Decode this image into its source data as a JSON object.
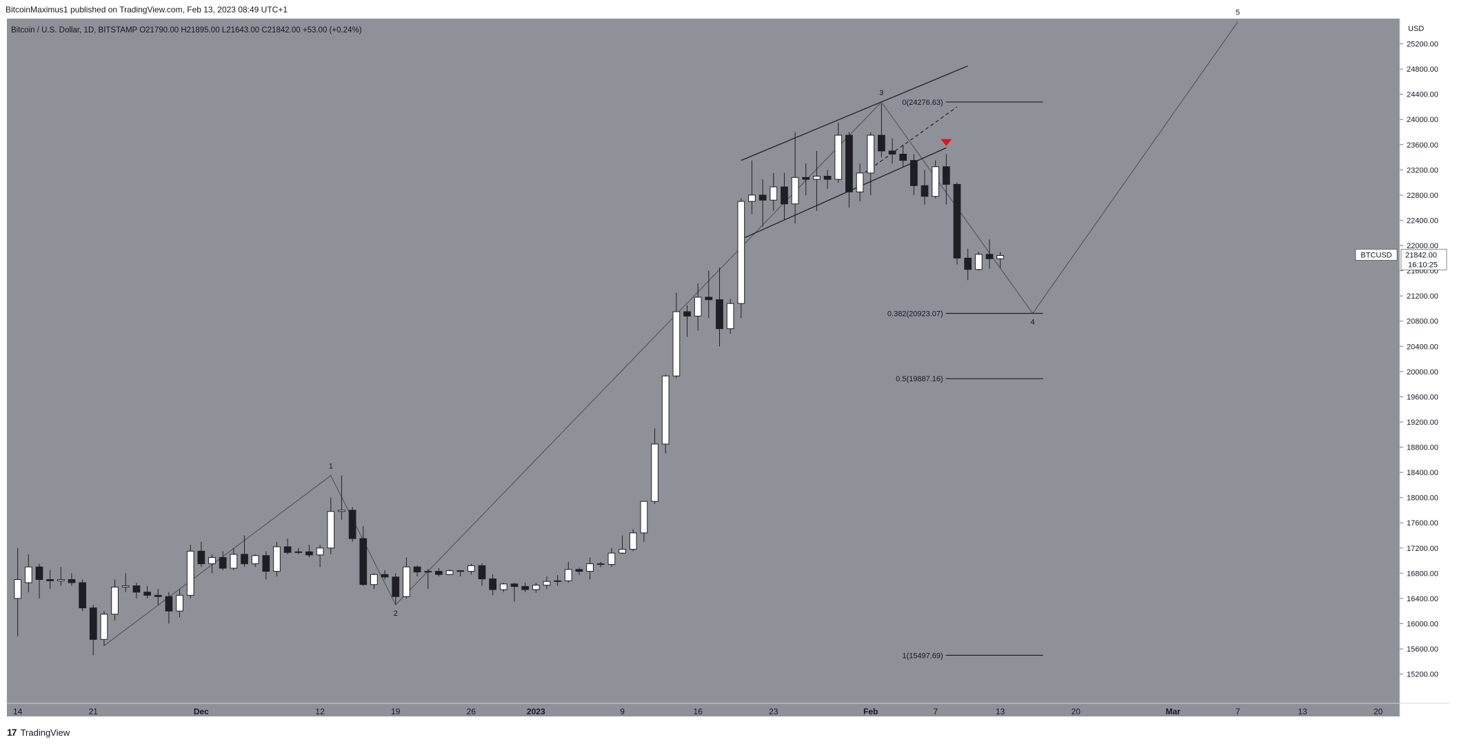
{
  "header": {
    "publisher_line": "BitcoinMaximus1 published on TradingView.com, Feb 13, 2023 08:49 UTC+1"
  },
  "footer": {
    "brand": "TradingView",
    "logo_glyph": "17"
  },
  "colors": {
    "background": "#8f9199",
    "up_candle": "#ffffff",
    "down_candle": "#1e1f24",
    "line": "#1e1f24",
    "red_marker": "#e0111c",
    "label_bg": "#ffffff"
  },
  "chart_data": {
    "type": "candlestick",
    "symbol_info": {
      "name": "Bitcoin / U.S. Dollar, 1D, BITSTAMP",
      "o_label": "O",
      "o": "21790.00",
      "h_label": "H",
      "h": "21895.00",
      "l_label": "L",
      "l": "21643.00",
      "c_label": "C",
      "c": "21842.00",
      "change": "+53.00 (+0.24%)"
    },
    "y_axis": {
      "unit": "USD",
      "ticks": [
        15200,
        15600,
        16000,
        16400,
        16800,
        17200,
        17600,
        18000,
        18400,
        18800,
        19200,
        19600,
        20000,
        20400,
        20800,
        21200,
        21600,
        22000,
        22400,
        22800,
        23200,
        23600,
        24000,
        24400,
        24800,
        25200
      ],
      "ylim": [
        14900,
        25600
      ]
    },
    "x_axis": {
      "ticks": [
        {
          "date": "2022-11-14",
          "label": "14"
        },
        {
          "date": "2022-11-21",
          "label": "21"
        },
        {
          "date": "2022-12-01",
          "label": "Dec"
        },
        {
          "date": "2022-12-12",
          "label": "12"
        },
        {
          "date": "2022-12-19",
          "label": "19"
        },
        {
          "date": "2022-12-26",
          "label": "26"
        },
        {
          "date": "2023-01-01",
          "label": "2023"
        },
        {
          "date": "2023-01-09",
          "label": "9"
        },
        {
          "date": "2023-01-16",
          "label": "16"
        },
        {
          "date": "2023-01-23",
          "label": "23"
        },
        {
          "date": "2023-02-01",
          "label": "Feb"
        },
        {
          "date": "2023-02-07",
          "label": "7"
        },
        {
          "date": "2023-02-13",
          "label": "13"
        },
        {
          "date": "2023-02-20",
          "label": "20"
        },
        {
          "date": "2023-03-01",
          "label": "Mar"
        },
        {
          "date": "2023-03-07",
          "label": "7"
        },
        {
          "date": "2023-03-13",
          "label": "13"
        },
        {
          "date": "2023-03-20",
          "label": "20"
        }
      ],
      "xlim": [
        "2022-11-13",
        "2023-03-22"
      ]
    },
    "candles": [
      {
        "date": "2022-11-14",
        "o": 16400,
        "h": 17200,
        "l": 15800,
        "c": 16700
      },
      {
        "date": "2022-11-15",
        "o": 16650,
        "h": 17100,
        "l": 16500,
        "c": 16900
      },
      {
        "date": "2022-11-16",
        "o": 16900,
        "h": 16950,
        "l": 16400,
        "c": 16700
      },
      {
        "date": "2022-11-17",
        "o": 16700,
        "h": 16850,
        "l": 16550,
        "c": 16680
      },
      {
        "date": "2022-11-18",
        "o": 16680,
        "h": 16900,
        "l": 16600,
        "c": 16700
      },
      {
        "date": "2022-11-19",
        "o": 16700,
        "h": 16800,
        "l": 16600,
        "c": 16650
      },
      {
        "date": "2022-11-20",
        "o": 16650,
        "h": 16700,
        "l": 16200,
        "c": 16250
      },
      {
        "date": "2022-11-21",
        "o": 16250,
        "h": 16300,
        "l": 15500,
        "c": 15750
      },
      {
        "date": "2022-11-22",
        "o": 15750,
        "h": 16200,
        "l": 15650,
        "c": 16150
      },
      {
        "date": "2022-11-23",
        "o": 16150,
        "h": 16700,
        "l": 16050,
        "c": 16580
      },
      {
        "date": "2022-11-24",
        "o": 16580,
        "h": 16800,
        "l": 16500,
        "c": 16600
      },
      {
        "date": "2022-11-25",
        "o": 16600,
        "h": 16650,
        "l": 16400,
        "c": 16500
      },
      {
        "date": "2022-11-26",
        "o": 16500,
        "h": 16600,
        "l": 16400,
        "c": 16450
      },
      {
        "date": "2022-11-27",
        "o": 16450,
        "h": 16550,
        "l": 16300,
        "c": 16430
      },
      {
        "date": "2022-11-28",
        "o": 16430,
        "h": 16500,
        "l": 16000,
        "c": 16200
      },
      {
        "date": "2022-11-29",
        "o": 16200,
        "h": 16550,
        "l": 16100,
        "c": 16450
      },
      {
        "date": "2022-11-30",
        "o": 16450,
        "h": 17250,
        "l": 16400,
        "c": 17150
      },
      {
        "date": "2022-12-01",
        "o": 17150,
        "h": 17300,
        "l": 16900,
        "c": 16950
      },
      {
        "date": "2022-12-02",
        "o": 16950,
        "h": 17100,
        "l": 16800,
        "c": 17050
      },
      {
        "date": "2022-12-03",
        "o": 17050,
        "h": 17150,
        "l": 16850,
        "c": 16880
      },
      {
        "date": "2022-12-04",
        "o": 16880,
        "h": 17200,
        "l": 16850,
        "c": 17100
      },
      {
        "date": "2022-12-05",
        "o": 17100,
        "h": 17400,
        "l": 16900,
        "c": 16950
      },
      {
        "date": "2022-12-06",
        "o": 16950,
        "h": 17100,
        "l": 16900,
        "c": 17080
      },
      {
        "date": "2022-12-07",
        "o": 17080,
        "h": 17150,
        "l": 16700,
        "c": 16830
      },
      {
        "date": "2022-12-08",
        "o": 16830,
        "h": 17300,
        "l": 16750,
        "c": 17220
      },
      {
        "date": "2022-12-09",
        "o": 17220,
        "h": 17350,
        "l": 17100,
        "c": 17130
      },
      {
        "date": "2022-12-10",
        "o": 17130,
        "h": 17200,
        "l": 17100,
        "c": 17140
      },
      {
        "date": "2022-12-11",
        "o": 17140,
        "h": 17250,
        "l": 17050,
        "c": 17090
      },
      {
        "date": "2022-12-12",
        "o": 17090,
        "h": 17250,
        "l": 16900,
        "c": 17200
      },
      {
        "date": "2022-12-13",
        "o": 17200,
        "h": 18000,
        "l": 17100,
        "c": 17780
      },
      {
        "date": "2022-12-14",
        "o": 17780,
        "h": 18350,
        "l": 17650,
        "c": 17800
      },
      {
        "date": "2022-12-15",
        "o": 17800,
        "h": 17850,
        "l": 17300,
        "c": 17350
      },
      {
        "date": "2022-12-16",
        "o": 17350,
        "h": 17550,
        "l": 16600,
        "c": 16620
      },
      {
        "date": "2022-12-17",
        "o": 16620,
        "h": 16800,
        "l": 16550,
        "c": 16780
      },
      {
        "date": "2022-12-18",
        "o": 16780,
        "h": 16850,
        "l": 16700,
        "c": 16740
      },
      {
        "date": "2022-12-19",
        "o": 16740,
        "h": 16800,
        "l": 16300,
        "c": 16430
      },
      {
        "date": "2022-12-20",
        "o": 16430,
        "h": 17050,
        "l": 16400,
        "c": 16900
      },
      {
        "date": "2022-12-21",
        "o": 16900,
        "h": 16920,
        "l": 16750,
        "c": 16820
      },
      {
        "date": "2022-12-22",
        "o": 16820,
        "h": 16870,
        "l": 16550,
        "c": 16830
      },
      {
        "date": "2022-12-23",
        "o": 16830,
        "h": 16880,
        "l": 16750,
        "c": 16780
      },
      {
        "date": "2022-12-24",
        "o": 16780,
        "h": 16860,
        "l": 16770,
        "c": 16840
      },
      {
        "date": "2022-12-25",
        "o": 16840,
        "h": 16850,
        "l": 16750,
        "c": 16830
      },
      {
        "date": "2022-12-26",
        "o": 16830,
        "h": 16950,
        "l": 16780,
        "c": 16920
      },
      {
        "date": "2022-12-27",
        "o": 16920,
        "h": 16960,
        "l": 16600,
        "c": 16710
      },
      {
        "date": "2022-12-28",
        "o": 16710,
        "h": 16780,
        "l": 16450,
        "c": 16540
      },
      {
        "date": "2022-12-29",
        "o": 16540,
        "h": 16650,
        "l": 16500,
        "c": 16630
      },
      {
        "date": "2022-12-30",
        "o": 16630,
        "h": 16650,
        "l": 16350,
        "c": 16590
      },
      {
        "date": "2022-12-31",
        "o": 16590,
        "h": 16650,
        "l": 16500,
        "c": 16540
      },
      {
        "date": "2023-01-01",
        "o": 16540,
        "h": 16650,
        "l": 16490,
        "c": 16610
      },
      {
        "date": "2023-01-02",
        "o": 16610,
        "h": 16750,
        "l": 16550,
        "c": 16670
      },
      {
        "date": "2023-01-03",
        "o": 16670,
        "h": 16770,
        "l": 16600,
        "c": 16680
      },
      {
        "date": "2023-01-04",
        "o": 16680,
        "h": 16980,
        "l": 16650,
        "c": 16860
      },
      {
        "date": "2023-01-05",
        "o": 16860,
        "h": 16890,
        "l": 16770,
        "c": 16830
      },
      {
        "date": "2023-01-06",
        "o": 16830,
        "h": 17050,
        "l": 16700,
        "c": 16950
      },
      {
        "date": "2023-01-07",
        "o": 16950,
        "h": 16980,
        "l": 16900,
        "c": 16940
      },
      {
        "date": "2023-01-08",
        "o": 16940,
        "h": 17200,
        "l": 16900,
        "c": 17120
      },
      {
        "date": "2023-01-09",
        "o": 17120,
        "h": 17400,
        "l": 17100,
        "c": 17180
      },
      {
        "date": "2023-01-10",
        "o": 17180,
        "h": 17500,
        "l": 17150,
        "c": 17440
      },
      {
        "date": "2023-01-11",
        "o": 17440,
        "h": 17950,
        "l": 17300,
        "c": 17940
      },
      {
        "date": "2023-01-12",
        "o": 17940,
        "h": 19100,
        "l": 17900,
        "c": 18850
      },
      {
        "date": "2023-01-13",
        "o": 18850,
        "h": 19950,
        "l": 18700,
        "c": 19930
      },
      {
        "date": "2023-01-14",
        "o": 19930,
        "h": 21250,
        "l": 19900,
        "c": 20950
      },
      {
        "date": "2023-01-15",
        "o": 20950,
        "h": 21050,
        "l": 20550,
        "c": 20880
      },
      {
        "date": "2023-01-16",
        "o": 20880,
        "h": 21400,
        "l": 20650,
        "c": 21180
      },
      {
        "date": "2023-01-17",
        "o": 21180,
        "h": 21600,
        "l": 20850,
        "c": 21140
      },
      {
        "date": "2023-01-18",
        "o": 21140,
        "h": 21650,
        "l": 20400,
        "c": 20680
      },
      {
        "date": "2023-01-19",
        "o": 20680,
        "h": 21150,
        "l": 20600,
        "c": 21080
      },
      {
        "date": "2023-01-20",
        "o": 21080,
        "h": 22750,
        "l": 20850,
        "c": 22700
      },
      {
        "date": "2023-01-21",
        "o": 22700,
        "h": 23350,
        "l": 22500,
        "c": 22800
      },
      {
        "date": "2023-01-22",
        "o": 22800,
        "h": 23050,
        "l": 22300,
        "c": 22720
      },
      {
        "date": "2023-01-23",
        "o": 22720,
        "h": 23150,
        "l": 22550,
        "c": 22930
      },
      {
        "date": "2023-01-24",
        "o": 22930,
        "h": 23150,
        "l": 22400,
        "c": 22660
      },
      {
        "date": "2023-01-25",
        "o": 22660,
        "h": 23800,
        "l": 22350,
        "c": 23080
      },
      {
        "date": "2023-01-26",
        "o": 23080,
        "h": 23300,
        "l": 22800,
        "c": 23050
      },
      {
        "date": "2023-01-27",
        "o": 23050,
        "h": 23500,
        "l": 22550,
        "c": 23100
      },
      {
        "date": "2023-01-28",
        "o": 23100,
        "h": 23200,
        "l": 22900,
        "c": 23050
      },
      {
        "date": "2023-01-29",
        "o": 23050,
        "h": 23950,
        "l": 23000,
        "c": 23750
      },
      {
        "date": "2023-01-30",
        "o": 23750,
        "h": 23800,
        "l": 22600,
        "c": 22850
      },
      {
        "date": "2023-01-31",
        "o": 22850,
        "h": 23300,
        "l": 22700,
        "c": 23150
      },
      {
        "date": "2023-02-01",
        "o": 23150,
        "h": 23800,
        "l": 22800,
        "c": 23750
      },
      {
        "date": "2023-02-02",
        "o": 23750,
        "h": 24250,
        "l": 23400,
        "c": 23500
      },
      {
        "date": "2023-02-03",
        "o": 23500,
        "h": 23700,
        "l": 23300,
        "c": 23450
      },
      {
        "date": "2023-02-04",
        "o": 23450,
        "h": 23600,
        "l": 23250,
        "c": 23350
      },
      {
        "date": "2023-02-05",
        "o": 23350,
        "h": 23450,
        "l": 22800,
        "c": 22950
      },
      {
        "date": "2023-02-06",
        "o": 22950,
        "h": 23200,
        "l": 22650,
        "c": 22780
      },
      {
        "date": "2023-02-07",
        "o": 22780,
        "h": 23350,
        "l": 22750,
        "c": 23250
      },
      {
        "date": "2023-02-08",
        "o": 23250,
        "h": 23450,
        "l": 22650,
        "c": 22970
      },
      {
        "date": "2023-02-09",
        "o": 22970,
        "h": 23000,
        "l": 21700,
        "c": 21800
      },
      {
        "date": "2023-02-10",
        "o": 21800,
        "h": 21950,
        "l": 21450,
        "c": 21620
      },
      {
        "date": "2023-02-11",
        "o": 21620,
        "h": 21900,
        "l": 21600,
        "c": 21860
      },
      {
        "date": "2023-02-12",
        "o": 21860,
        "h": 22100,
        "l": 21630,
        "c": 21790
      },
      {
        "date": "2023-02-13",
        "o": 21790,
        "h": 21895,
        "l": 21643,
        "c": 21842
      }
    ],
    "wave_path": [
      {
        "label": "",
        "date": "2022-11-22",
        "price": 15650
      },
      {
        "label": "1",
        "date": "2022-12-13",
        "price": 18350
      },
      {
        "label": "2",
        "date": "2022-12-19",
        "price": 16300
      },
      {
        "label": "3",
        "date": "2023-02-02",
        "price": 24276
      },
      {
        "label": "4",
        "date": "2023-02-16",
        "price": 20923
      },
      {
        "label": "5",
        "date": "2023-03-07",
        "price": 25550
      }
    ],
    "channel": {
      "upper": [
        {
          "date": "2023-01-20",
          "price": 23350
        },
        {
          "date": "2023-02-10",
          "price": 24850
        }
      ],
      "lower": [
        {
          "date": "2023-01-20",
          "price": 22100
        },
        {
          "date": "2023-02-08",
          "price": 23550
        }
      ],
      "mid_dashed": [
        {
          "date": "2023-01-31",
          "price": 23100
        },
        {
          "date": "2023-02-09",
          "price": 24200
        }
      ]
    },
    "fib_levels": [
      {
        "label": "0(24276.63)",
        "value": 24276.63
      },
      {
        "label": "0.382(20923.07)",
        "value": 20923.07
      },
      {
        "label": "0.5(19887.16)",
        "value": 19887.16
      },
      {
        "label": "1(15497.69)",
        "value": 15497.69
      }
    ],
    "fib_line_dates": [
      "2023-02-07",
      "2023-02-16"
    ],
    "red_marker": {
      "date": "2023-02-08",
      "price": 23600
    },
    "last_price_label": {
      "symbol": "BTCUSD",
      "price": "21842.00",
      "countdown": "16:10:25",
      "value": 21842
    }
  }
}
